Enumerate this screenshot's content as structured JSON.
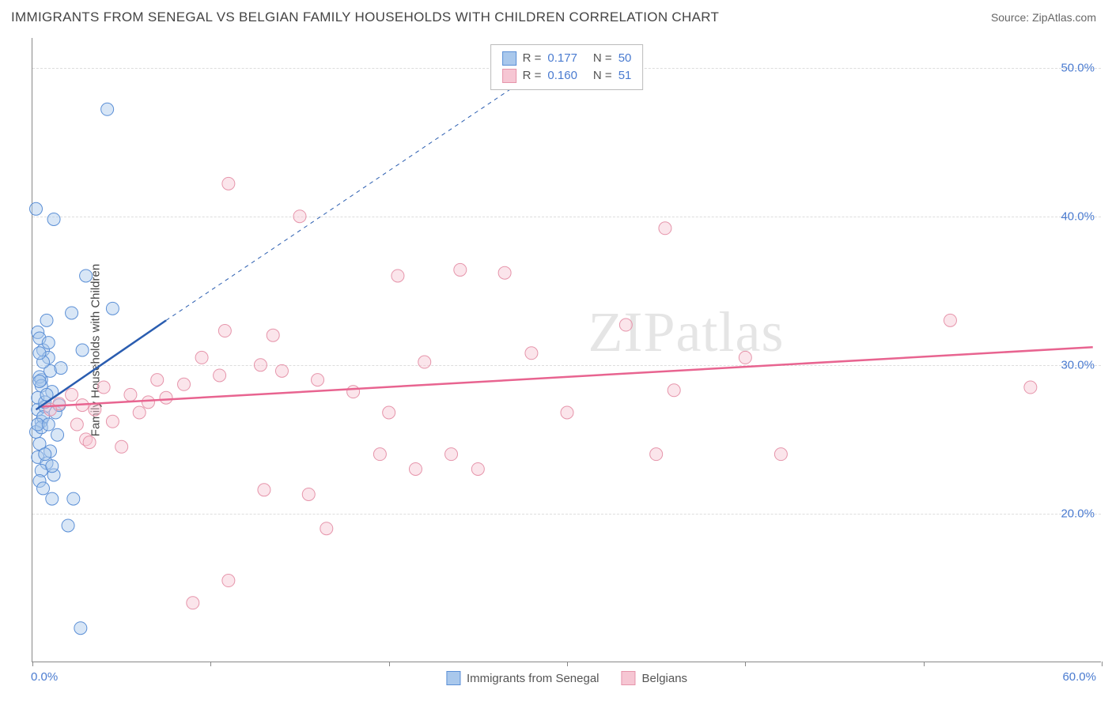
{
  "header": {
    "title": "IMMIGRANTS FROM SENEGAL VS BELGIAN FAMILY HOUSEHOLDS WITH CHILDREN CORRELATION CHART",
    "source": "Source: ZipAtlas.com"
  },
  "chart": {
    "type": "scatter",
    "y_axis_label": "Family Households with Children",
    "xlim": [
      0,
      60
    ],
    "ylim": [
      10,
      52
    ],
    "x_ticks": [
      0,
      10,
      20,
      30,
      40,
      50,
      60
    ],
    "x_tick_labels": {
      "first": "0.0%",
      "last": "60.0%"
    },
    "y_ticks": [
      20,
      30,
      40,
      50
    ],
    "y_tick_labels": [
      "20.0%",
      "30.0%",
      "40.0%",
      "50.0%"
    ],
    "grid_color": "#dddddd",
    "axis_color": "#888888",
    "background_color": "#ffffff",
    "tick_label_color": "#4a7bd0",
    "axis_label_color": "#444444",
    "marker_radius": 8,
    "marker_opacity": 0.45,
    "series": [
      {
        "name": "Immigrants from Senegal",
        "fill": "#a9c8ec",
        "stroke": "#5b8fd6",
        "trend_line": {
          "x1": 0.2,
          "y1": 27.0,
          "x2": 7.5,
          "y2": 33.0,
          "stroke": "#2a5db0",
          "dash_extend": {
            "x2": 28,
            "y2": 49.5
          }
        },
        "points": [
          [
            0.2,
            40.5
          ],
          [
            1.2,
            39.8
          ],
          [
            4.2,
            47.2
          ],
          [
            3.0,
            36.0
          ],
          [
            0.3,
            27.0
          ],
          [
            0.5,
            29.0
          ],
          [
            0.6,
            31.0
          ],
          [
            0.3,
            32.2
          ],
          [
            0.8,
            33.0
          ],
          [
            0.4,
            31.8
          ],
          [
            0.9,
            30.5
          ],
          [
            0.4,
            29.2
          ],
          [
            1.1,
            28.2
          ],
          [
            0.3,
            27.8
          ],
          [
            0.7,
            27.2
          ],
          [
            0.5,
            26.2
          ],
          [
            0.2,
            25.5
          ],
          [
            0.4,
            24.7
          ],
          [
            1.0,
            24.2
          ],
          [
            0.3,
            23.8
          ],
          [
            0.8,
            23.4
          ],
          [
            0.5,
            22.9
          ],
          [
            1.2,
            22.6
          ],
          [
            0.4,
            22.2
          ],
          [
            0.6,
            21.7
          ],
          [
            1.1,
            21.0
          ],
          [
            0.7,
            27.5
          ],
          [
            1.3,
            26.8
          ],
          [
            0.5,
            28.6
          ],
          [
            1.0,
            29.6
          ],
          [
            0.6,
            30.2
          ],
          [
            0.9,
            31.5
          ],
          [
            0.4,
            30.8
          ],
          [
            2.2,
            33.5
          ],
          [
            2.8,
            31.0
          ],
          [
            1.5,
            27.3
          ],
          [
            4.5,
            33.8
          ],
          [
            0.6,
            26.5
          ],
          [
            1.4,
            25.3
          ],
          [
            0.8,
            28.0
          ],
          [
            0.5,
            25.8
          ],
          [
            2.0,
            19.2
          ],
          [
            2.3,
            21.0
          ],
          [
            2.7,
            12.3
          ],
          [
            1.6,
            29.8
          ],
          [
            0.3,
            26.0
          ],
          [
            0.7,
            24.0
          ],
          [
            1.1,
            23.2
          ],
          [
            0.4,
            28.9
          ],
          [
            0.9,
            26.0
          ]
        ],
        "r_value": "0.177",
        "n_value": "50"
      },
      {
        "name": "Belgians",
        "fill": "#f6c6d3",
        "stroke": "#e695ab",
        "trend_line": {
          "x1": 0.5,
          "y1": 27.2,
          "x2": 59.5,
          "y2": 31.2,
          "stroke": "#e86490"
        },
        "points": [
          [
            11.0,
            42.2
          ],
          [
            15.0,
            40.0
          ],
          [
            35.5,
            39.2
          ],
          [
            24.0,
            36.4
          ],
          [
            26.5,
            36.2
          ],
          [
            20.5,
            36.0
          ],
          [
            51.5,
            33.0
          ],
          [
            33.3,
            32.7
          ],
          [
            10.8,
            32.3
          ],
          [
            13.5,
            32.0
          ],
          [
            9.5,
            30.5
          ],
          [
            40.0,
            30.5
          ],
          [
            56.0,
            28.5
          ],
          [
            36.0,
            28.3
          ],
          [
            12.8,
            30.0
          ],
          [
            7.0,
            29.0
          ],
          [
            5.5,
            28.0
          ],
          [
            8.5,
            28.7
          ],
          [
            10.5,
            29.3
          ],
          [
            14.0,
            29.6
          ],
          [
            16.0,
            29.0
          ],
          [
            22.0,
            30.2
          ],
          [
            28.0,
            30.8
          ],
          [
            18.0,
            28.2
          ],
          [
            20.0,
            26.8
          ],
          [
            30.0,
            26.8
          ],
          [
            23.5,
            24.0
          ],
          [
            19.5,
            24.0
          ],
          [
            21.5,
            23.0
          ],
          [
            25.0,
            23.0
          ],
          [
            13.0,
            21.6
          ],
          [
            15.5,
            21.3
          ],
          [
            11.0,
            15.5
          ],
          [
            9.0,
            14.0
          ],
          [
            35.0,
            24.0
          ],
          [
            42.0,
            24.0
          ],
          [
            16.5,
            19.0
          ],
          [
            4.0,
            28.5
          ],
          [
            6.5,
            27.5
          ],
          [
            3.5,
            27.0
          ],
          [
            2.5,
            26.0
          ],
          [
            3.0,
            25.0
          ],
          [
            5.0,
            24.5
          ],
          [
            2.8,
            27.3
          ],
          [
            4.5,
            26.2
          ],
          [
            6.0,
            26.8
          ],
          [
            1.5,
            27.4
          ],
          [
            2.2,
            28.0
          ],
          [
            1.0,
            27.0
          ],
          [
            3.2,
            24.8
          ],
          [
            7.5,
            27.8
          ]
        ],
        "r_value": "0.160",
        "n_value": "51"
      }
    ],
    "legend_top": {
      "r_label": "R  =",
      "n_label": "N  ="
    },
    "watermark": "ZIPatlas"
  }
}
